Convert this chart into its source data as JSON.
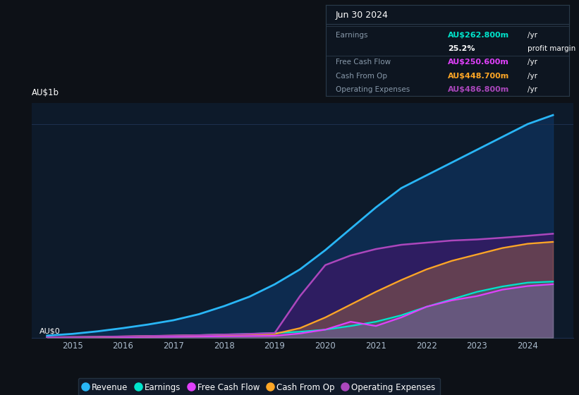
{
  "bg_color": "#0d1117",
  "plot_bg_color": "#0d1a2a",
  "years": [
    2014.5,
    2015,
    2015.5,
    2016,
    2016.5,
    2017,
    2017.5,
    2018,
    2018.5,
    2019,
    2019.5,
    2020,
    2020.5,
    2021,
    2021.5,
    2022,
    2022.5,
    2023,
    2023.5,
    2024,
    2024.5
  ],
  "revenue": [
    0.01,
    0.018,
    0.03,
    0.045,
    0.062,
    0.082,
    0.11,
    0.148,
    0.192,
    0.25,
    0.32,
    0.41,
    0.51,
    0.61,
    0.7,
    0.76,
    0.82,
    0.88,
    0.94,
    1.0,
    1.042
  ],
  "earnings": [
    0.001,
    0.002,
    0.003,
    0.005,
    0.007,
    0.009,
    0.012,
    0.015,
    0.018,
    0.022,
    0.028,
    0.038,
    0.055,
    0.075,
    0.105,
    0.145,
    0.18,
    0.215,
    0.24,
    0.258,
    0.2628
  ],
  "free_cash_flow": [
    0.001,
    0.001,
    0.002,
    0.003,
    0.004,
    0.005,
    0.006,
    0.007,
    0.008,
    0.009,
    0.02,
    0.038,
    0.075,
    0.055,
    0.095,
    0.145,
    0.175,
    0.195,
    0.225,
    0.242,
    0.2506
  ],
  "cash_from_op": [
    0.002,
    0.003,
    0.004,
    0.006,
    0.008,
    0.01,
    0.012,
    0.014,
    0.016,
    0.018,
    0.045,
    0.095,
    0.155,
    0.215,
    0.27,
    0.32,
    0.36,
    0.39,
    0.42,
    0.44,
    0.4487
  ],
  "op_expenses": [
    0.002,
    0.003,
    0.004,
    0.006,
    0.008,
    0.01,
    0.012,
    0.015,
    0.018,
    0.022,
    0.195,
    0.34,
    0.385,
    0.415,
    0.435,
    0.445,
    0.455,
    0.46,
    0.468,
    0.477,
    0.4868
  ],
  "revenue_color": "#29b6f6",
  "earnings_color": "#00e5cc",
  "free_cash_flow_color": "#e040fb",
  "cash_from_op_color": "#ffa726",
  "op_expenses_color": "#ab47bc",
  "revenue_fill": "#0d3a6e",
  "op_expenses_fill": "#4a1270",
  "ylim": [
    0,
    1.1
  ],
  "xlim": [
    2014.2,
    2024.9
  ],
  "grid_color": "#1e3050",
  "table_header": "Jun 30 2024",
  "legend_items": [
    [
      "Revenue",
      "#29b6f6"
    ],
    [
      "Earnings",
      "#00e5cc"
    ],
    [
      "Free Cash Flow",
      "#e040fb"
    ],
    [
      "Cash From Op",
      "#ffa726"
    ],
    [
      "Operating Expenses",
      "#ab47bc"
    ]
  ]
}
